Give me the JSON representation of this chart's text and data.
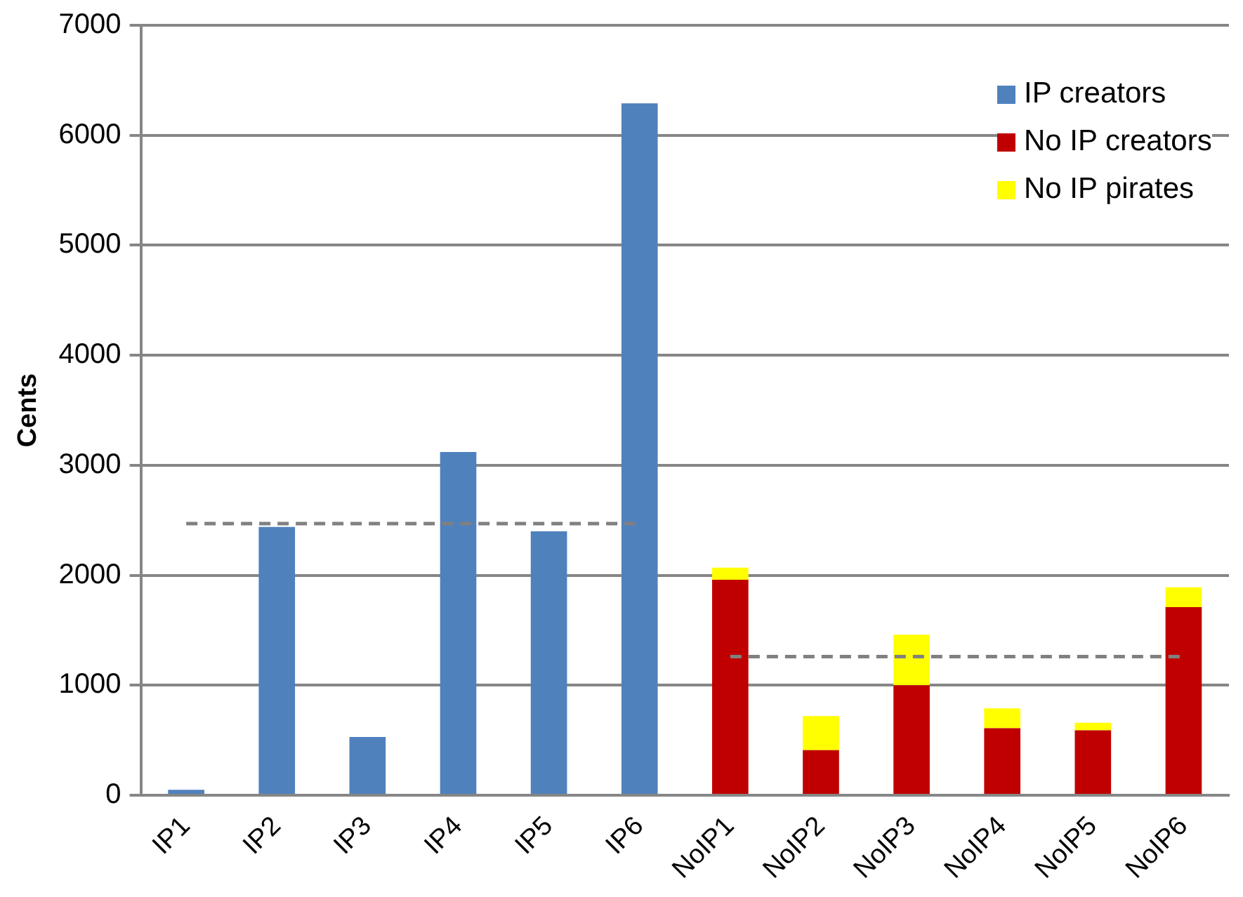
{
  "chart_data": {
    "type": "bar",
    "ylabel": "Cents",
    "categories": [
      "IP1",
      "IP2",
      "IP3",
      "IP4",
      "IP5",
      "IP6",
      "NoIP1",
      "NoIP2",
      "NoIP3",
      "NoIP4",
      "NoIP5",
      "NoIP6"
    ],
    "stacked": true,
    "grid": "y",
    "legend": "top right",
    "ylim": [
      0,
      7000
    ],
    "yticks": [
      0,
      1000,
      2000,
      3000,
      4000,
      5000,
      6000,
      7000
    ],
    "series": [
      {
        "name": "IP creators",
        "color": "#4f81bd",
        "values": [
          50,
          2440,
          530,
          3120,
          2400,
          6290,
          null,
          null,
          null,
          null,
          null,
          null
        ]
      },
      {
        "name": "No IP creators",
        "color": "#c00000",
        "values": [
          null,
          null,
          null,
          null,
          null,
          null,
          1960,
          410,
          1000,
          610,
          590,
          1710
        ]
      },
      {
        "name": "No IP pirates",
        "color": "#ffff00",
        "values": [
          null,
          null,
          null,
          null,
          null,
          null,
          110,
          310,
          460,
          180,
          70,
          180
        ]
      },
      {
        "type": "line",
        "color": "#808080",
        "line_style": "dashed",
        "marker": "none",
        "values": [
          2470,
          2470,
          2470,
          2470,
          2470,
          2470,
          null,
          null,
          null,
          null,
          null,
          null
        ]
      },
      {
        "type": "line",
        "color": "#808080",
        "line_style": "dashed",
        "marker": "none",
        "values": [
          null,
          null,
          null,
          null,
          null,
          null,
          1260,
          1260,
          1260,
          1260,
          1260,
          1260
        ]
      }
    ]
  }
}
